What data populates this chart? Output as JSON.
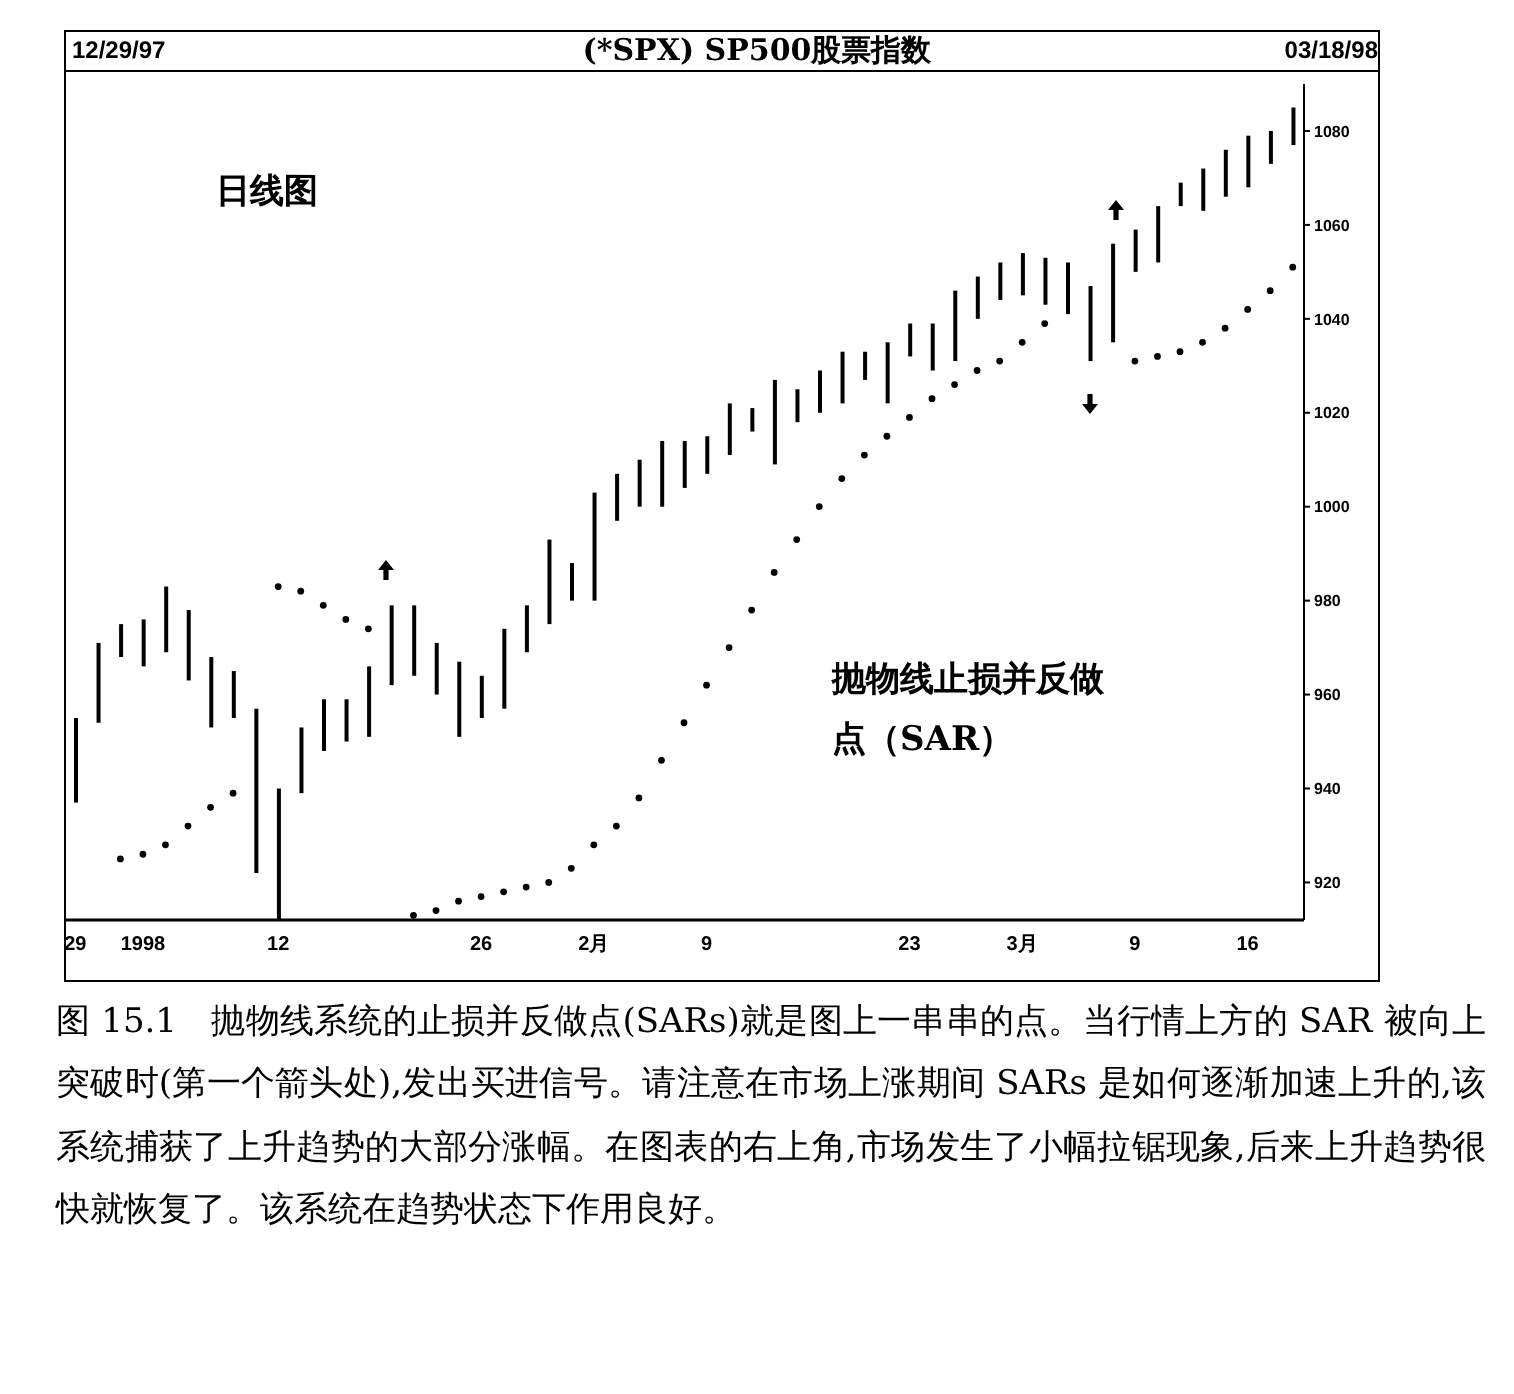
{
  "chart_data": {
    "type": "bar",
    "title": "(*SPX) SP500股票指数",
    "categories": [
      "29",
      null,
      null,
      "1998",
      null,
      null,
      null,
      null,
      null,
      "12",
      null,
      null,
      null,
      null,
      null,
      null,
      null,
      null,
      "26",
      null,
      null,
      null,
      null,
      "2月",
      null,
      null,
      null,
      null,
      "9",
      null,
      null,
      null,
      null,
      null,
      null,
      null,
      null,
      "23",
      null,
      null,
      null,
      null,
      "3月",
      null,
      null,
      null,
      null,
      "9",
      null,
      null,
      null,
      null,
      "16",
      null,
      null
    ],
    "series": [
      {
        "color": "#000000",
        "base": [
          937,
          954,
          968,
          966,
          969,
          963,
          953,
          955,
          922,
          912,
          939,
          948,
          950,
          951,
          962,
          964,
          960,
          951,
          955,
          957,
          969,
          975,
          980,
          980,
          997,
          1000,
          1000,
          1004,
          1007,
          1011,
          1016,
          1009,
          1018,
          1020,
          1022,
          1027,
          1022,
          1032,
          1029,
          1031,
          1040,
          1044,
          1045,
          1043,
          1041,
          1031,
          1035,
          1050,
          1052,
          1064,
          1063,
          1066,
          1068,
          1073,
          1077
        ],
        "values": [
          18,
          17,
          7,
          10,
          14,
          15,
          15,
          10,
          35,
          28,
          14,
          11,
          9,
          15,
          17,
          15,
          11,
          16,
          9,
          17,
          10,
          18,
          8,
          23,
          10,
          10,
          14,
          10,
          8,
          11,
          5,
          18,
          7,
          9,
          11,
          6,
          13,
          7,
          10,
          15,
          9,
          8,
          9,
          10,
          11,
          16,
          21,
          9,
          12,
          5,
          9,
          10,
          11,
          7,
          8
        ]
      },
      {
        "type": "scatter",
        "color": "#000000",
        "marker": "circle",
        "values": [
          null,
          null,
          925,
          926,
          928,
          932,
          936,
          939,
          null,
          983,
          982,
          979,
          976,
          974,
          null,
          913,
          914,
          916,
          917,
          918,
          919,
          920,
          923,
          928,
          932,
          938,
          946,
          954,
          962,
          970,
          978,
          986,
          993,
          1000,
          1006,
          1011,
          1015,
          1019,
          1023,
          1026,
          1029,
          1031,
          1035,
          1039,
          null,
          null,
          null,
          1031,
          1032,
          1033,
          1035,
          1038,
          1042,
          1046,
          1051
        ]
      }
    ],
    "ylim": [
      912,
      1090
    ],
    "yticks": [
      920,
      940,
      960,
      980,
      1000,
      1020,
      1040,
      1060,
      1080
    ],
    "grid": false,
    "legend": false,
    "annotations": [
      "12/29/97",
      "03/18/98",
      "日线图",
      "抛物线止损并反做点（SAR）",
      "图 15.1　抛物线系统的止损并反做点(SARs)就是图上一串串的点。当行情上方的 SAR 被向上突破时(第一个箭头处),发出买进信号。请注意在市场上涨期间 SARs 是如何逐渐加速上升的,该系统捕获了上升趋势的大部分涨幅。在图表的右上角,市场发生了小幅拉锯现象,后来上升趋势很快就恢复了。该系统在趋势状态下作用良好。"
    ]
  }
}
